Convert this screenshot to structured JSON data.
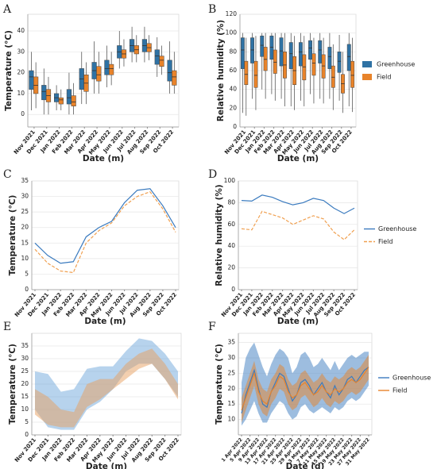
{
  "chart_data": [
    {
      "type": "box",
      "panel": "A",
      "xlabel": "Date (m)",
      "ylabel": "Temperature (°C)",
      "categories": [
        "Nov 2021",
        "Dec 2021",
        "Jan 2022",
        "Feb 2022",
        "Mar 2022",
        "Apr 2022",
        "May 2022",
        "Jun 2022",
        "Jul 2022",
        "Aug 2022",
        "Sep 2022",
        "Oct 2022"
      ],
      "ylim": [
        -6,
        48
      ],
      "yticks": [
        0,
        10,
        20,
        30,
        40
      ],
      "grid": true,
      "legend": false,
      "series": [
        {
          "name": "Greenhouse",
          "color": "#2f72a4",
          "boxes": [
            {
              "min": 2,
              "q1": 12,
              "median": 18,
              "q3": 21,
              "max": 30
            },
            {
              "min": 0,
              "q1": 7,
              "median": 11,
              "q3": 14,
              "max": 22
            },
            {
              "min": 2,
              "q1": 6,
              "median": 8,
              "q3": 10,
              "max": 14
            },
            {
              "min": 0,
              "q1": 5,
              "median": 8,
              "q3": 12,
              "max": 20
            },
            {
              "min": 5,
              "q1": 12,
              "median": 17,
              "q3": 22,
              "max": 30
            },
            {
              "min": 10,
              "q1": 17,
              "median": 21,
              "q3": 25,
              "max": 35
            },
            {
              "min": 13,
              "q1": 19,
              "median": 22,
              "q3": 26,
              "max": 33
            },
            {
              "min": 22,
              "q1": 27,
              "median": 30,
              "q3": 33,
              "max": 40
            },
            {
              "min": 25,
              "q1": 30,
              "median": 33,
              "q3": 36,
              "max": 42
            },
            {
              "min": 25,
              "q1": 30,
              "median": 33,
              "q3": 36,
              "max": 42
            },
            {
              "min": 18,
              "q1": 24,
              "median": 28,
              "q3": 31,
              "max": 37
            },
            {
              "min": 10,
              "q1": 16,
              "median": 20,
              "q3": 26,
              "max": 35
            }
          ]
        },
        {
          "name": "Field",
          "color": "#e8832a",
          "boxes": [
            {
              "min": 3,
              "q1": 10,
              "median": 14,
              "q3": 18,
              "max": 25
            },
            {
              "min": 0,
              "q1": 6,
              "median": 9,
              "q3": 12,
              "max": 18
            },
            {
              "min": 2,
              "q1": 5,
              "median": 7,
              "q3": 8,
              "max": 12
            },
            {
              "min": 0,
              "q1": 4,
              "median": 6,
              "q3": 9,
              "max": 15
            },
            {
              "min": 5,
              "q1": 11,
              "median": 15,
              "q3": 19,
              "max": 25
            },
            {
              "min": 10,
              "q1": 16,
              "median": 19,
              "q3": 23,
              "max": 30
            },
            {
              "min": 14,
              "q1": 19,
              "median": 22,
              "q3": 24,
              "max": 30
            },
            {
              "min": 23,
              "q1": 27,
              "median": 29,
              "q3": 31,
              "max": 36
            },
            {
              "min": 25,
              "q1": 29,
              "median": 31,
              "q3": 33,
              "max": 38
            },
            {
              "min": 26,
              "q1": 30,
              "median": 32,
              "q3": 34,
              "max": 38
            },
            {
              "min": 19,
              "q1": 23,
              "median": 26,
              "q3": 28,
              "max": 33
            },
            {
              "min": 10,
              "q1": 14,
              "median": 18,
              "q3": 21,
              "max": 30
            }
          ]
        }
      ]
    },
    {
      "type": "box",
      "panel": "B",
      "xlabel": "Date (m)",
      "ylabel": "Relative humidity (%)",
      "categories": [
        "Nov 2021",
        "Dec 2021",
        "Jan 2022",
        "Feb 2022",
        "Mar 2022",
        "Apr 2022",
        "May 2022",
        "Jun 2022",
        "Jul 2022",
        "Aug 2022",
        "Sep 2022",
        "Oct 2022"
      ],
      "ylim": [
        0,
        120
      ],
      "yticks": [
        0,
        20,
        40,
        60,
        80,
        100,
        120
      ],
      "grid": true,
      "legend": true,
      "series": [
        {
          "name": "Greenhouse",
          "color": "#2f72a4",
          "boxes": [
            {
              "min": 15,
              "q1": 62,
              "median": 82,
              "q3": 95,
              "max": 100
            },
            {
              "min": 30,
              "q1": 68,
              "median": 82,
              "q3": 95,
              "max": 100
            },
            {
              "min": 40,
              "q1": 75,
              "median": 87,
              "q3": 97,
              "max": 100
            },
            {
              "min": 35,
              "q1": 72,
              "median": 85,
              "q3": 97,
              "max": 100
            },
            {
              "min": 30,
              "q1": 65,
              "median": 81,
              "q3": 95,
              "max": 100
            },
            {
              "min": 22,
              "q1": 62,
              "median": 78,
              "q3": 90,
              "max": 100
            },
            {
              "min": 28,
              "q1": 65,
              "median": 80,
              "q3": 90,
              "max": 100
            },
            {
              "min": 35,
              "q1": 72,
              "median": 84,
              "q3": 92,
              "max": 100
            },
            {
              "min": 30,
              "q1": 68,
              "median": 82,
              "q3": 92,
              "max": 100
            },
            {
              "min": 30,
              "q1": 62,
              "median": 75,
              "q3": 85,
              "max": 100
            },
            {
              "min": 28,
              "q1": 58,
              "median": 70,
              "q3": 80,
              "max": 98
            },
            {
              "min": 22,
              "q1": 60,
              "median": 75,
              "q3": 88,
              "max": 100
            }
          ]
        },
        {
          "name": "Field",
          "color": "#e8832a",
          "boxes": [
            {
              "min": 12,
              "q1": 45,
              "median": 56,
              "q3": 70,
              "max": 95
            },
            {
              "min": 18,
              "q1": 42,
              "median": 55,
              "q3": 70,
              "max": 97
            },
            {
              "min": 30,
              "q1": 60,
              "median": 72,
              "q3": 85,
              "max": 100
            },
            {
              "min": 28,
              "q1": 57,
              "median": 69,
              "q3": 82,
              "max": 100
            },
            {
              "min": 22,
              "q1": 52,
              "median": 66,
              "q3": 80,
              "max": 100
            },
            {
              "min": 18,
              "q1": 45,
              "median": 60,
              "q3": 75,
              "max": 97
            },
            {
              "min": 22,
              "q1": 50,
              "median": 64,
              "q3": 77,
              "max": 97
            },
            {
              "min": 25,
              "q1": 55,
              "median": 68,
              "q3": 78,
              "max": 95
            },
            {
              "min": 25,
              "q1": 52,
              "median": 65,
              "q3": 77,
              "max": 95
            },
            {
              "min": 18,
              "q1": 42,
              "median": 53,
              "q3": 65,
              "max": 88
            },
            {
              "min": 15,
              "q1": 36,
              "median": 46,
              "q3": 56,
              "max": 80
            },
            {
              "min": 16,
              "q1": 42,
              "median": 55,
              "q3": 70,
              "max": 95
            }
          ]
        }
      ]
    },
    {
      "type": "line",
      "panel": "C",
      "xlabel": "Date (m)",
      "ylabel": "Temperature (°C)",
      "categories": [
        "Nov 2021",
        "Dec 2021",
        "Jan 2022",
        "Feb 2022",
        "Mar 2022",
        "Apr 2022",
        "May 2022",
        "Jun 2022",
        "Jul 2022",
        "Aug 2022",
        "Sep 2022",
        "Oct 2022"
      ],
      "ylim": [
        0,
        35
      ],
      "yticks": [
        0,
        5,
        10,
        15,
        20,
        25,
        30,
        35
      ],
      "grid": true,
      "legend": false,
      "series": [
        {
          "name": "Greenhouse",
          "color": "#3b7bbf",
          "line_style": "solid",
          "values": [
            15,
            11,
            8.5,
            9,
            17,
            20,
            22,
            28,
            32,
            32.5,
            27,
            20
          ]
        },
        {
          "name": "Field",
          "color": "#f0a050",
          "line_style": "dashed",
          "values": [
            13,
            8.5,
            6,
            5.5,
            15,
            19,
            21.5,
            27,
            30,
            31.5,
            26,
            18.5
          ]
        }
      ]
    },
    {
      "type": "line",
      "panel": "D",
      "xlabel": "Date (m)",
      "ylabel": "Relative humidity (%)",
      "categories": [
        "Nov 2021",
        "Dec 2021",
        "Jan 2022",
        "Feb 2022",
        "Mar 2022",
        "Apr 2022",
        "May 2022",
        "Jun 2022",
        "Jul 2022",
        "Aug 2022",
        "Sep 2022",
        "Oct 2022"
      ],
      "ylim": [
        0,
        100
      ],
      "yticks": [
        0,
        20,
        40,
        60,
        80,
        100
      ],
      "grid": true,
      "legend": true,
      "series": [
        {
          "name": "Greenhouse",
          "color": "#3b7bbf",
          "line_style": "solid",
          "values": [
            82,
            81.5,
            87,
            85,
            81,
            78,
            80,
            84,
            82,
            75,
            70,
            75
          ]
        },
        {
          "name": "Field",
          "color": "#f0a050",
          "line_style": "dashed",
          "values": [
            56,
            55,
            72,
            69,
            66,
            60,
            64,
            68,
            65,
            53,
            46,
            55
          ]
        }
      ]
    },
    {
      "type": "area",
      "panel": "E",
      "xlabel": "Date (m)",
      "ylabel": "Temperature (°C)",
      "categories": [
        "Nov 2021",
        "Dec 2021",
        "Jan 2022",
        "Feb 2022",
        "Mar 2022",
        "Apr 2022",
        "May 2022",
        "Jun 2022",
        "Jul 2022",
        "Aug 2022",
        "Sep 2022",
        "Oct 2022"
      ],
      "ylim": [
        0,
        40
      ],
      "yticks": [
        0,
        5,
        10,
        15,
        20,
        25,
        30,
        35
      ],
      "grid": true,
      "legend": false,
      "series": [
        {
          "name": "Greenhouse",
          "color": "#6fa8dc",
          "low": [
            10,
            3,
            2,
            2,
            10,
            13,
            18,
            25,
            28,
            28,
            22,
            15
          ],
          "high": [
            25,
            24,
            17,
            18,
            26,
            27,
            27,
            33,
            38,
            37,
            32,
            25
          ]
        },
        {
          "name": "Field",
          "color": "#e8a060",
          "low": [
            8,
            4,
            3,
            3,
            11,
            14,
            18,
            22,
            26,
            28,
            22,
            14
          ],
          "high": [
            18,
            15,
            10,
            9,
            20,
            22,
            22,
            28,
            32,
            34,
            28,
            20
          ]
        }
      ]
    },
    {
      "type": "line",
      "panel": "F",
      "xlabel": "Date (d)",
      "ylabel": "Temperature (°C)",
      "categories": [
        "1 Apr 2022",
        null,
        "5 Apr 2022",
        null,
        "9 Apr 2022",
        null,
        "13 Apr 2022",
        null,
        "17 Apr 2022",
        null,
        "21 Apr 2022",
        null,
        "25 Apr 2022",
        null,
        "29 Apr 2022",
        null,
        "3 May 2022",
        null,
        "7 May 2022",
        null,
        "11 May 2022",
        null,
        "15 May 2022",
        null,
        "19 May 2022",
        null,
        "23 May 2022",
        null,
        "27 May 2022",
        null,
        "31 May 2022"
      ],
      "ylim": [
        5,
        38
      ],
      "yticks": [
        10,
        15,
        20,
        25,
        30,
        35
      ],
      "grid": true,
      "legend": true,
      "series": [
        {
          "name": "Greenhouse",
          "color": "#3b7bbf",
          "line_style": "solid",
          "values": [
            12,
            18,
            22,
            26,
            20,
            15,
            14,
            19,
            22,
            25,
            24,
            20,
            16,
            18,
            22,
            23,
            21,
            18,
            20,
            22,
            19,
            17,
            21,
            18,
            20,
            23,
            24,
            22,
            24,
            26,
            27
          ],
          "low": [
            8,
            10,
            13,
            16,
            12,
            9,
            9,
            12,
            14,
            16,
            15,
            12,
            10,
            11,
            14,
            15,
            13,
            12,
            13,
            14,
            13,
            12,
            14,
            13,
            14,
            16,
            17,
            16,
            17,
            19,
            21
          ],
          "high": [
            22,
            30,
            33,
            35,
            31,
            27,
            24,
            28,
            31,
            33,
            32,
            30,
            25,
            27,
            31,
            32,
            30,
            27,
            28,
            30,
            28,
            26,
            29,
            26,
            28,
            30,
            31,
            30,
            31,
            32,
            32
          ]
        },
        {
          "name": "Field",
          "color": "#e8832a",
          "line_style": "solid",
          "values": [
            13,
            17,
            21,
            25,
            19,
            16,
            15,
            19,
            21,
            24,
            23,
            19,
            17,
            18,
            21,
            22,
            20,
            18,
            19,
            21,
            19,
            18,
            20,
            19,
            20,
            22,
            23,
            22,
            23,
            25,
            27
          ],
          "low": [
            9,
            13,
            17,
            21,
            15,
            12,
            11,
            15,
            17,
            20,
            19,
            15,
            13,
            14,
            17,
            18,
            16,
            14,
            15,
            17,
            15,
            14,
            16,
            15,
            16,
            18,
            19,
            18,
            19,
            21,
            23
          ],
          "high": [
            17,
            21,
            25,
            29,
            23,
            20,
            19,
            23,
            25,
            28,
            27,
            23,
            21,
            22,
            25,
            26,
            24,
            22,
            23,
            25,
            23,
            22,
            24,
            23,
            24,
            26,
            27,
            26,
            27,
            29,
            31
          ]
        }
      ]
    }
  ]
}
